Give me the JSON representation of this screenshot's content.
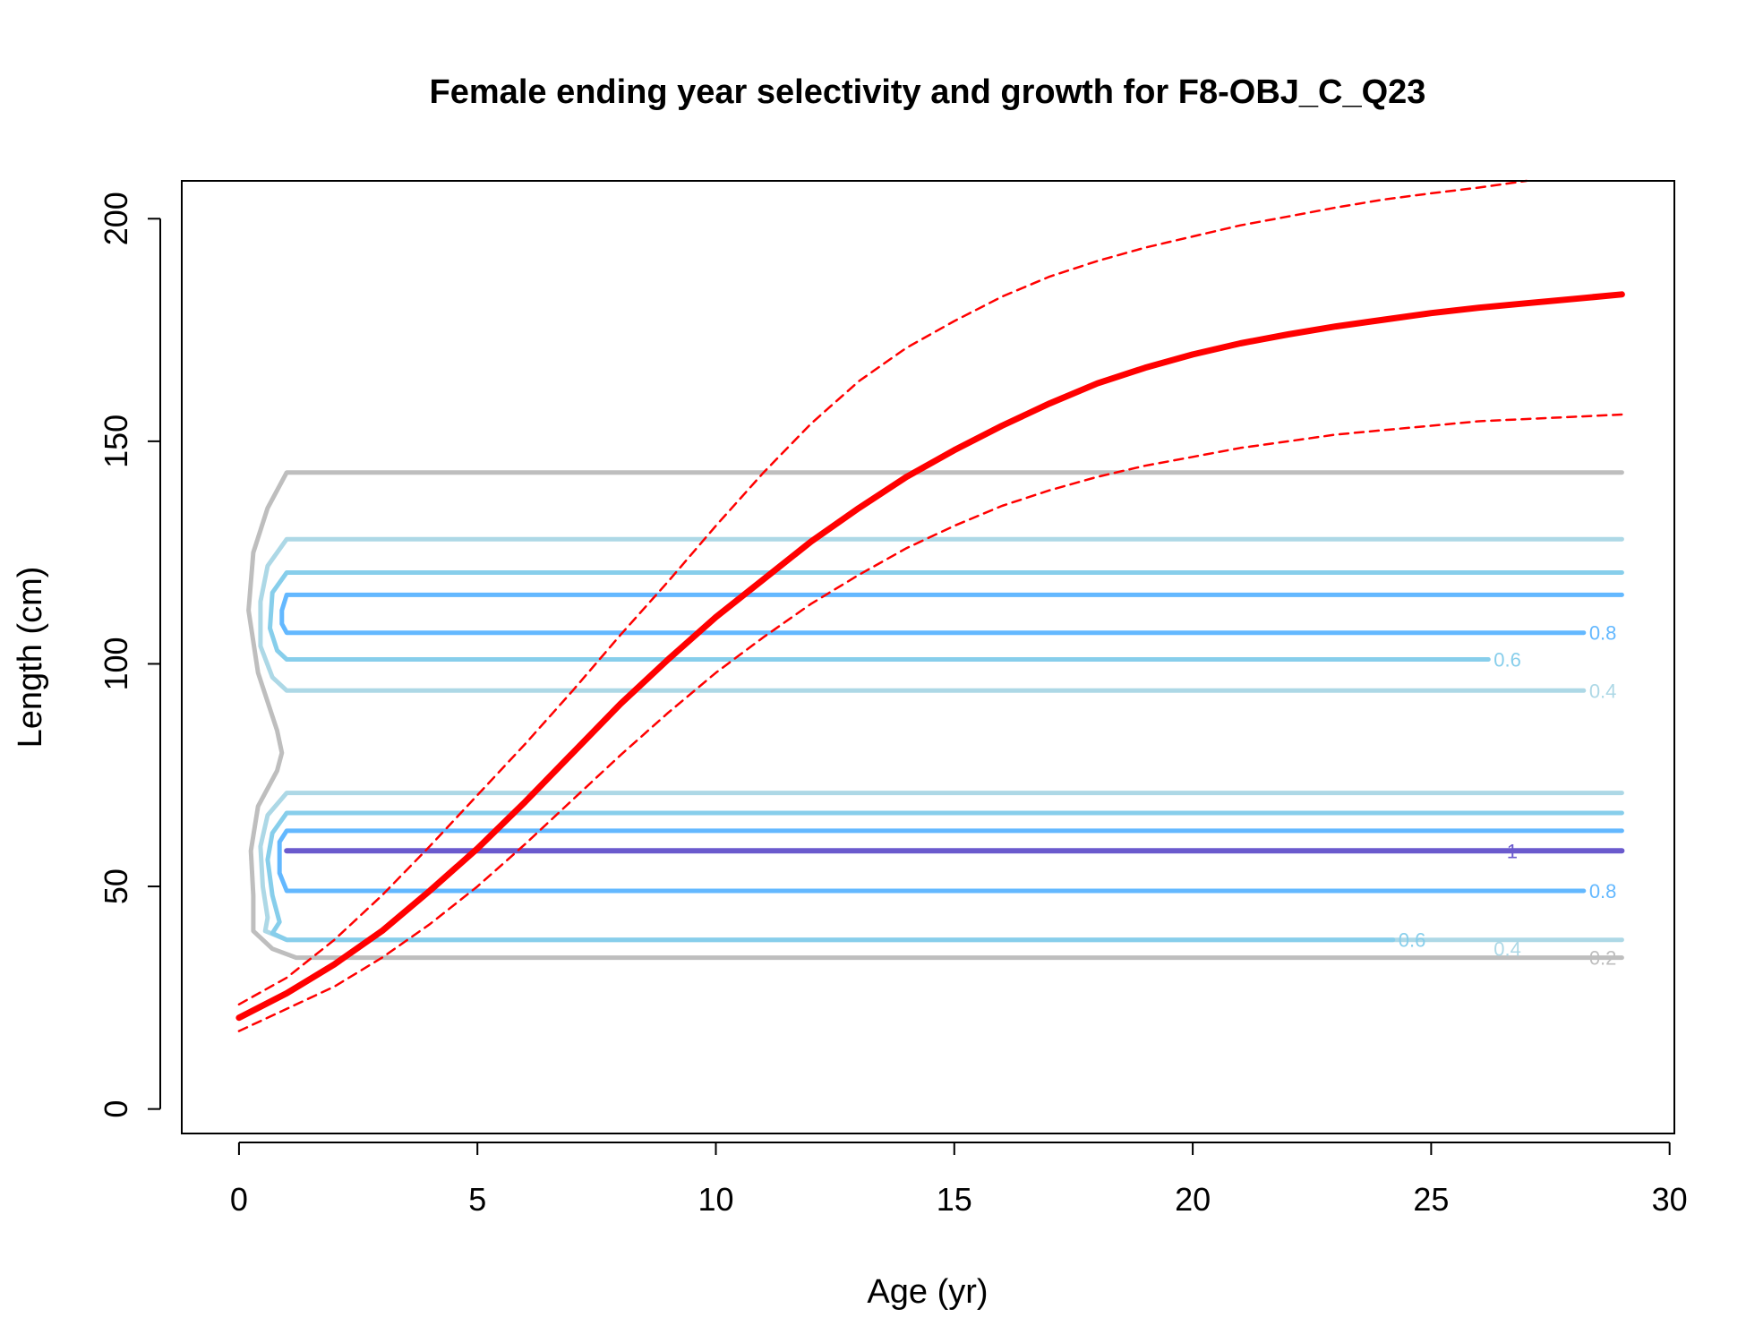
{
  "chart_data": {
    "type": "line",
    "title": "Female ending year selectivity and growth for F8-OBJ_C_Q23",
    "xlabel": "Age (yr)",
    "ylabel": "Length (cm)",
    "xlim": [
      -1.2,
      30.1
    ],
    "ylim": [
      -5.5,
      208.5
    ],
    "x_ticks": [
      0,
      5,
      10,
      15,
      20,
      25,
      30
    ],
    "y_ticks": [
      0,
      50,
      100,
      150,
      200
    ],
    "grid": false,
    "legend": "none",
    "colors": {
      "growth": "#ff0000",
      "level_0.2": "#bebebe",
      "level_0.4": "#add8e6",
      "level_0.6": "#87ceeb",
      "level_0.8": "#63b8ff",
      "level_1": "#6a5acd"
    },
    "series": [
      {
        "role": "mean",
        "style": "solid",
        "x": [
          0,
          1,
          2,
          3,
          4,
          5,
          6,
          7,
          8,
          9,
          10,
          11,
          12,
          13,
          14,
          15,
          16,
          17,
          18,
          19,
          20,
          21,
          22,
          23,
          24,
          25,
          26,
          27,
          28,
          29
        ],
        "y": [
          20.5,
          26,
          32.5,
          40,
          49,
          58.5,
          69,
          80,
          91,
          101,
          110.5,
          119,
          127.5,
          135,
          142,
          148,
          153.5,
          158.5,
          163,
          166.5,
          169.5,
          172,
          174,
          175.8,
          177.3,
          178.8,
          180,
          181,
          182,
          183
        ]
      },
      {
        "role": "upper",
        "style": "dashed",
        "x": [
          0,
          1,
          2,
          3,
          4,
          5,
          6,
          7,
          8,
          9,
          10,
          11,
          12,
          13,
          14,
          15,
          16,
          17,
          18,
          19,
          20,
          21,
          22,
          23,
          24,
          25,
          26,
          27
        ],
        "y": [
          23.5,
          29.5,
          38,
          48,
          59,
          70.5,
          82,
          94,
          106.5,
          118.5,
          131,
          143,
          154,
          163.5,
          171,
          177,
          182.5,
          187,
          190.5,
          193.5,
          196,
          198.5,
          200.5,
          202.5,
          204.3,
          205.7,
          207,
          208.5
        ]
      },
      {
        "role": "lower",
        "style": "dashed",
        "x": [
          0,
          1,
          2,
          3,
          4,
          5,
          6,
          7,
          8,
          9,
          10,
          11,
          12,
          13,
          14,
          15,
          16,
          17,
          18,
          19,
          20,
          21,
          22,
          23,
          24,
          25,
          26,
          27,
          28,
          29
        ],
        "y": [
          17.5,
          22.5,
          27.5,
          34,
          41.5,
          50,
          59.5,
          69.5,
          79.5,
          89,
          98,
          106,
          113.5,
          120,
          126,
          131,
          135.5,
          139,
          142,
          144.5,
          146.5,
          148.5,
          150,
          151.5,
          152.5,
          153.5,
          154.5,
          155,
          155.5,
          156
        ]
      }
    ],
    "contours": [
      {
        "level": "0.2",
        "label": "0.2",
        "label_x": 28.6,
        "label_y": 34,
        "points": [
          [
            29,
            143
          ],
          [
            1,
            143
          ],
          [
            0.6,
            135
          ],
          [
            0.3,
            125
          ],
          [
            0.2,
            112
          ],
          [
            0.4,
            98
          ],
          [
            0.8,
            85
          ],
          [
            0.9,
            80
          ],
          [
            0.8,
            76
          ],
          [
            0.4,
            68
          ],
          [
            0.25,
            58
          ],
          [
            0.3,
            48
          ],
          [
            0.3,
            40
          ],
          [
            0.7,
            36
          ],
          [
            1.2,
            34
          ],
          [
            29,
            34
          ]
        ]
      },
      {
        "level": "0.4",
        "label": "0.4",
        "label_x": 28.6,
        "label_y": 94,
        "points": [
          [
            29,
            128
          ],
          [
            1,
            128
          ],
          [
            0.6,
            122
          ],
          [
            0.45,
            114
          ],
          [
            0.45,
            104
          ],
          [
            0.7,
            97
          ],
          [
            1,
            94
          ],
          [
            28.2,
            94
          ]
        ]
      },
      {
        "level": "0.4",
        "label": "0.4",
        "label_x": 26.6,
        "label_y": 36,
        "points": [
          [
            29,
            71
          ],
          [
            1,
            71
          ],
          [
            0.6,
            66
          ],
          [
            0.45,
            59
          ],
          [
            0.5,
            50
          ],
          [
            0.6,
            43
          ],
          [
            0.55,
            40
          ],
          [
            1,
            38
          ],
          [
            29,
            38
          ]
        ]
      },
      {
        "level": "0.6",
        "label": "0.6",
        "label_x": 26.6,
        "label_y": 101,
        "points": [
          [
            29,
            120.5
          ],
          [
            1,
            120.5
          ],
          [
            0.7,
            116
          ],
          [
            0.65,
            108
          ],
          [
            0.8,
            103
          ],
          [
            1,
            101
          ],
          [
            26.2,
            101
          ]
        ]
      },
      {
        "level": "0.6",
        "label": "0.6",
        "label_x": 24.6,
        "label_y": 38,
        "points": [
          [
            29,
            66.5
          ],
          [
            1,
            66.5
          ],
          [
            0.7,
            62
          ],
          [
            0.6,
            56
          ],
          [
            0.7,
            48
          ],
          [
            0.85,
            42
          ],
          [
            0.7,
            39.5
          ],
          [
            1,
            38
          ],
          [
            24.2,
            38
          ]
        ]
      },
      {
        "level": "0.8",
        "label": "0.8",
        "label_x": 28.6,
        "label_y": 107,
        "points": [
          [
            29,
            115.5
          ],
          [
            1,
            115.5
          ],
          [
            0.9,
            112
          ],
          [
            0.9,
            109
          ],
          [
            1,
            107
          ],
          [
            28.2,
            107
          ]
        ]
      },
      {
        "level": "0.8",
        "label": "0.8",
        "label_x": 28.6,
        "label_y": 49,
        "points": [
          [
            29,
            62.5
          ],
          [
            1,
            62.5
          ],
          [
            0.85,
            60
          ],
          [
            0.85,
            53
          ],
          [
            1,
            49
          ],
          [
            28.2,
            49
          ]
        ]
      },
      {
        "level": "1",
        "label": "1",
        "label_x": 26.7,
        "label_y": 58,
        "points": [
          [
            1,
            58
          ],
          [
            29,
            58
          ]
        ]
      }
    ]
  }
}
